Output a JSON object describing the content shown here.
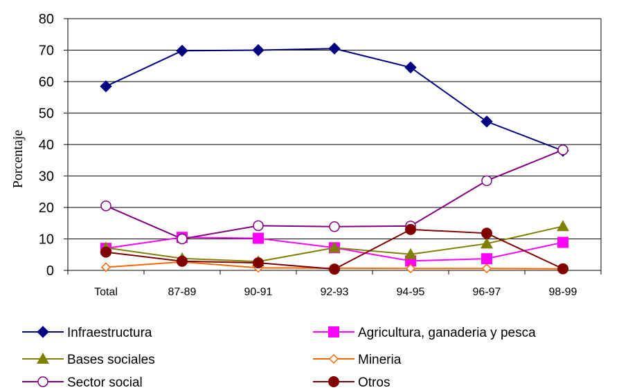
{
  "chart_data": {
    "type": "line",
    "title": "",
    "xlabel": "",
    "ylabel": "Porcentaje",
    "ylim": [
      0,
      80
    ],
    "yticks": [
      0,
      10,
      20,
      30,
      40,
      50,
      60,
      70,
      80
    ],
    "grid": true,
    "legend_position": "bottom",
    "categories": [
      "Total",
      "87-89",
      "90-91",
      "92-93",
      "94-95",
      "96-97",
      "98-99"
    ],
    "series": [
      {
        "name": "Infraestructura",
        "color": "#000080",
        "marker": "diamond-filled",
        "values": [
          58.5,
          69.8,
          70.0,
          70.5,
          64.5,
          47.3,
          38.0
        ]
      },
      {
        "name": "Agricultura, ganaderia y pesca",
        "color": "#FF00FF",
        "marker": "square-filled",
        "values": [
          7.0,
          10.5,
          10.2,
          7.2,
          3.0,
          3.7,
          8.9
        ]
      },
      {
        "name": "Bases sociales",
        "color": "#808000",
        "marker": "triangle-filled",
        "values": [
          7.2,
          3.8,
          2.8,
          7.2,
          5.1,
          8.5,
          14.0
        ]
      },
      {
        "name": "Mineria",
        "color": "#FF6600",
        "marker": "diamond-open",
        "values": [
          1.0,
          2.7,
          0.8,
          0.7,
          0.6,
          0.6,
          0.5
        ]
      },
      {
        "name": "Sector social",
        "color": "#800080",
        "marker": "circle-open",
        "values": [
          20.5,
          10.0,
          14.2,
          13.9,
          14.1,
          28.5,
          38.3
        ]
      },
      {
        "name": "Otros",
        "color": "#800000",
        "marker": "circle-filled",
        "values": [
          5.8,
          2.9,
          2.4,
          0.4,
          13.0,
          11.8,
          0.5
        ]
      }
    ]
  }
}
